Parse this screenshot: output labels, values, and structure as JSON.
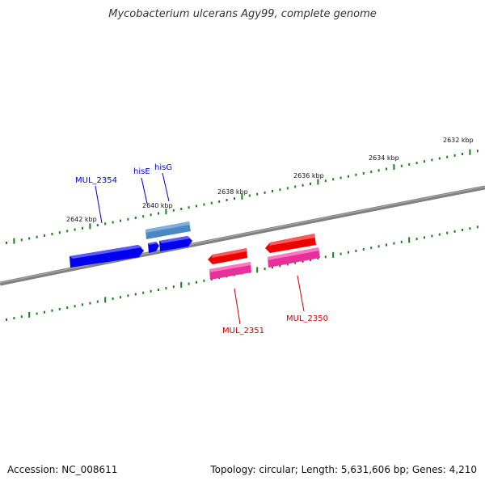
{
  "title": "Mycobacterium ulcerans Agy99, complete genome",
  "footer": {
    "accession": "Accession: NC_008611",
    "summary": "Topology: circular; Length: 5,631,606 bp; Genes: 4,210"
  },
  "kbp_labels": [
    "2642 kbp",
    "2640 kbp",
    "2638 kbp",
    "2636 kbp",
    "2634 kbp",
    "2632 kbp"
  ],
  "genes": {
    "mul2354": "MUL_2354",
    "hisE": "hisE",
    "hisG": "hisG",
    "mul2351": "MUL_2351",
    "mul2350": "MUL_2350"
  },
  "colors": {
    "backbone": "#808080",
    "ticks": "#1a7f1a",
    "forward_cds": "#0000ee",
    "forward_gene": "#4a88bf",
    "reverse_cds": "#ee0000",
    "reverse_gene": "#e8309a",
    "forward_label": "#0000cc",
    "reverse_label": "#cc0000"
  }
}
